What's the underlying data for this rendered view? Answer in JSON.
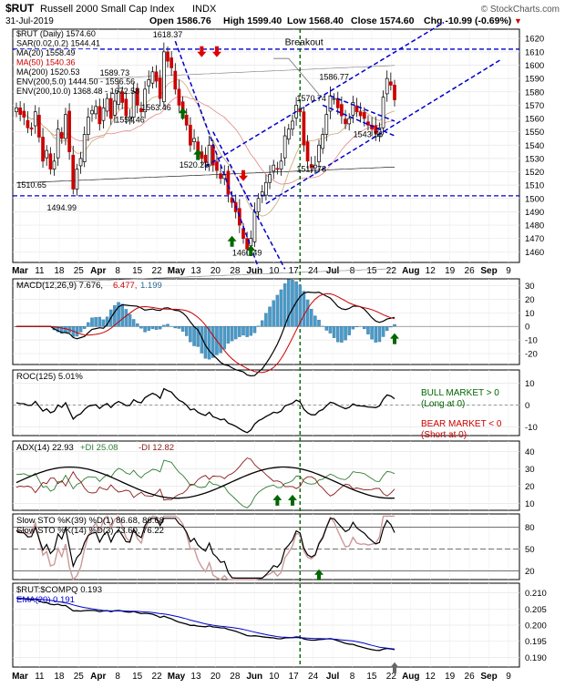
{
  "header": {
    "symbol": "$RUT",
    "name": "Russell 2000 Small Cap Index",
    "exchange": "INDX",
    "watermark": "© StockCharts.com",
    "date": "31-Jul-2019",
    "open": "Open 1586.76",
    "high": "High 1599.40",
    "low": "Low 1568.40",
    "close": "Close 1574.60",
    "chg": "Chg -10.99 (-0.69%)",
    "chg_arrow": "▼"
  },
  "colors": {
    "up": "#000000",
    "down": "#cc0000",
    "blue_line": "#0000cc",
    "green": "#006600",
    "red": "#dd0000"
  },
  "chart_data": [
    {
      "type": "candlestick",
      "panel": "price",
      "legend": [
        "$RUT (Daily) 1574.60",
        "SAR(0.02,0.2) 1544.41",
        "MA(20) 1558.49",
        "MA(50) 1540.36",
        "MA(200) 1520.53",
        "ENV(200,5.0) 1444.50 - 1596.56",
        "ENV(200,10.0) 1368.48 - 1672.58"
      ],
      "x_ticks": [
        "Mar",
        "11",
        "18",
        "25",
        "Apr",
        "8",
        "15",
        "22",
        "May",
        "13",
        "20",
        "28",
        "Jun",
        "10",
        "17",
        "24",
        "Jul",
        "8",
        "15",
        "22",
        "Aug",
        "12",
        "19",
        "26",
        "Sep",
        "9"
      ],
      "y_ticks": [
        1460,
        1470,
        1480,
        1490,
        1500,
        1510,
        1520,
        1530,
        1540,
        1550,
        1560,
        1570,
        1580,
        1590,
        1600,
        1610,
        1620
      ],
      "ylim": [
        1452,
        1627
      ],
      "annotations": {
        "labels": [
          "1618.37",
          "1589.73",
          "1554.46",
          "1563.46",
          "1520.28",
          "1510.65",
          "1494.99",
          "1460.49",
          "1570.74",
          "1586.77",
          "1517.78",
          "1543.56"
        ],
        "breakout": "Breakout"
      },
      "close": [
        1568,
        1563,
        1561,
        1553,
        1552,
        1565,
        1546,
        1528,
        1536,
        1522,
        1528,
        1552,
        1545,
        1563,
        1535,
        1507,
        1522,
        1530,
        1548,
        1561,
        1566,
        1569,
        1556,
        1568,
        1575,
        1560,
        1573,
        1580,
        1572,
        1562,
        1561,
        1580,
        1570,
        1565,
        1582,
        1589,
        1595,
        1588,
        1575,
        1610,
        1603,
        1598,
        1582,
        1570,
        1565,
        1555,
        1540,
        1545,
        1535,
        1530,
        1527,
        1540,
        1525,
        1521,
        1515,
        1518,
        1503,
        1497,
        1490,
        1480,
        1470,
        1462,
        1470,
        1490,
        1500,
        1505,
        1512,
        1518,
        1525,
        1522,
        1528,
        1547,
        1552,
        1558,
        1570,
        1565,
        1540,
        1528,
        1523,
        1525,
        1540,
        1548,
        1563,
        1577,
        1575,
        1568,
        1562,
        1556,
        1560,
        1572,
        1565,
        1562,
        1560,
        1555,
        1552,
        1549,
        1553,
        1576,
        1590,
        1585,
        1574
      ]
    },
    {
      "type": "line",
      "panel": "macd",
      "legend": [
        "MACD(12,26,9) 7.676,",
        "6.477,",
        "1.199"
      ],
      "y_ticks": [
        -20,
        -10,
        0,
        10,
        20,
        30
      ],
      "ylim": [
        -28,
        35
      ]
    },
    {
      "type": "line",
      "panel": "roc",
      "legend": "ROC(125) 5.01%",
      "y_ticks": [
        -10,
        0,
        10
      ],
      "ylim": [
        -14,
        16
      ],
      "notes": [
        "BULL MARKET > 0",
        "(Long at 0)",
        "BEAR MARKET < 0",
        "(Short at 0)"
      ]
    },
    {
      "type": "line",
      "panel": "adx",
      "legend": [
        "ADX(14) 22.93",
        "+DI 25.08",
        "-DI 12.82"
      ],
      "y_ticks": [
        10,
        20,
        30,
        40
      ],
      "ylim": [
        6,
        46
      ]
    },
    {
      "type": "line",
      "panel": "stochastics",
      "legend": [
        "Slow STO %K(39) %D(1) 86.68, 86.68",
        "Slow STO %K(14) %D(3) 73.60, 76.22"
      ],
      "y_ticks": [
        20,
        50,
        80
      ],
      "ylim": [
        8,
        98
      ]
    },
    {
      "type": "line",
      "panel": "ratio",
      "legend": [
        "$RUT:$COMPQ 0.193",
        "EMA(20) 0.191"
      ],
      "y_ticks": [
        0.19,
        0.195,
        0.2,
        0.205,
        0.21
      ],
      "ylim": [
        0.187,
        0.213
      ]
    }
  ]
}
